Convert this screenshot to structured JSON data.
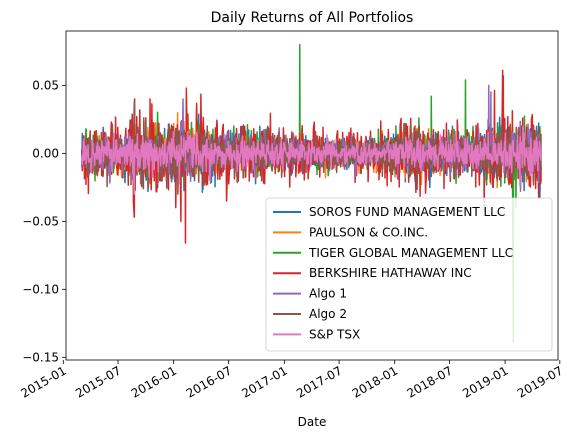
{
  "chart_data": {
    "type": "line",
    "title": "Daily Returns of All Portfolios",
    "xlabel": "Date",
    "ylabel": "",
    "x_range": [
      "2015-01-10",
      "2019-06-25"
    ],
    "data_range": [
      "2015-03-03",
      "2019-04-30"
    ],
    "ylim": [
      -0.152,
      0.09
    ],
    "y_ticks": [
      0.05,
      0.0,
      -0.05,
      -0.1,
      -0.15
    ],
    "y_tick_labels": [
      "0.05",
      "0.00",
      "−0.05",
      "−0.10",
      "−0.15"
    ],
    "x_ticks": [
      "2015-01-01",
      "2015-07-01",
      "2016-01-01",
      "2016-07-01",
      "2017-01-01",
      "2017-07-01",
      "2018-01-01",
      "2018-07-01",
      "2019-01-01",
      "2019-07-01"
    ],
    "x_tick_labels": [
      "2015-01",
      "2015-07",
      "2016-01",
      "2016-07",
      "2017-01",
      "2017-07",
      "2018-01",
      "2018-07",
      "2019-01",
      "2019-07"
    ],
    "grid": false,
    "legend_position": "lower-right",
    "series": [
      {
        "name": "SOROS FUND MANAGEMENT LLC",
        "color": "#1f77b4",
        "base_volatility": 0.0078,
        "spikes": [
          [
            "2018-04-27",
            -0.025
          ],
          [
            "2018-02-05",
            -0.021
          ],
          [
            "2016-06-24",
            -0.019
          ]
        ]
      },
      {
        "name": "PAULSON & CO.INC.",
        "color": "#ff7f0e",
        "base_volatility": 0.007,
        "spikes": [
          [
            "2016-06-24",
            -0.022
          ],
          [
            "2016-01-20",
            -0.02
          ],
          [
            "2017-05-17",
            -0.018
          ],
          [
            "2018-02-05",
            -0.018
          ]
        ]
      },
      {
        "name": "TIGER GLOBAL MANAGEMENT LLC",
        "color": "#2ca02c",
        "base_volatility": 0.0075,
        "spikes": [
          [
            "2017-02-21",
            0.08
          ],
          [
            "2018-08-23",
            0.054
          ],
          [
            "2018-05-02",
            0.042
          ],
          [
            "2019-01-28",
            -0.139
          ],
          [
            "2019-02-06",
            -0.04
          ]
        ]
      },
      {
        "name": "BERKSHIRE HATHAWAY INC",
        "color": "#d62728",
        "base_volatility": 0.011,
        "spikes": [
          [
            "2016-02-12",
            0.048
          ],
          [
            "2015-08-24",
            -0.047
          ],
          [
            "2016-02-09",
            -0.066
          ],
          [
            "2016-01-25",
            -0.05
          ],
          [
            "2018-12-24",
            0.061
          ],
          [
            "2018-12-26",
            0.057
          ],
          [
            "2018-10-24",
            -0.043
          ],
          [
            "2015-08-25",
            0.04
          ],
          [
            "2016-06-24",
            -0.035
          ]
        ]
      },
      {
        "name": "Algo 1",
        "color": "#9467bd",
        "base_volatility": 0.0065,
        "spikes": [
          [
            "2018-11-08",
            0.05
          ],
          [
            "2016-02-01",
            0.04
          ],
          [
            "2018-11-15",
            0.045
          ]
        ]
      },
      {
        "name": "Algo 2",
        "color": "#8c564b",
        "base_volatility": 0.0075,
        "spikes": [
          [
            "2015-08-24",
            0.038
          ],
          [
            "2016-01-15",
            -0.03
          ]
        ]
      },
      {
        "name": "S&P TSX",
        "color": "#e377c2",
        "base_volatility": 0.0052,
        "spikes": [
          [
            "2015-08-24",
            -0.03
          ],
          [
            "2016-01-20",
            -0.022
          ]
        ]
      }
    ]
  }
}
